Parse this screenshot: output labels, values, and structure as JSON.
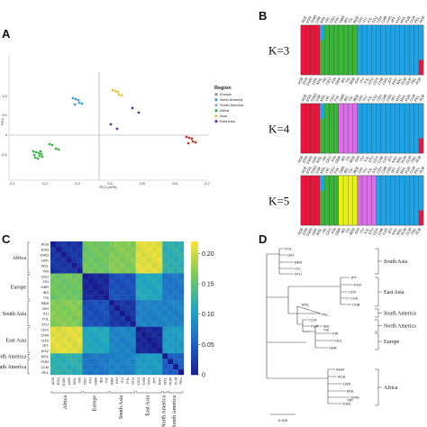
{
  "panels": {
    "a": "A",
    "b": "B",
    "c": "C",
    "d": "D"
  },
  "pca": {
    "xlabel": "PC1 (xx%)",
    "ylabel": "PC2",
    "x_ticks": [
      "0.1",
      "0.2",
      "0.3",
      "0.4",
      "0.5",
      "0.6",
      "0.7"
    ],
    "y_ticks": [
      "0.2",
      "0.1",
      "0",
      "-0.1"
    ],
    "legend_title": "Region",
    "legend": [
      {
        "name": "Europe",
        "color": "#8a8a8a"
      },
      {
        "name": "North America",
        "color": "#4a9ad6"
      },
      {
        "name": "South America",
        "color": "#7ab6e0"
      },
      {
        "name": "Africa",
        "color": "#3cb44b"
      },
      {
        "name": "Asia",
        "color": "#e6c040"
      },
      {
        "name": "East Asia",
        "color": "#6e2aa0"
      }
    ]
  },
  "admixture": {
    "k_labels": [
      "K=3",
      "K=4",
      "K=5"
    ]
  },
  "heatmap": {
    "row_groups": [
      "Africa",
      "Europe",
      "South Asia",
      "East Asia",
      "North America",
      "South America"
    ],
    "col_groups": [
      "Africa",
      "Europe",
      "South Asia",
      "East Asia",
      "North America",
      "South America"
    ],
    "labels": [
      "ACB",
      "ESN",
      "GWD",
      "LWK",
      "MSL",
      "YRI",
      "CEU",
      "FIN",
      "GBR",
      "IBS",
      "TSI",
      "BEB",
      "GIH",
      "ITU",
      "PJL",
      "STU",
      "CDX",
      "CHB",
      "CHS",
      "JPT",
      "KHV",
      "MXL",
      "PUR",
      "CLM",
      "PEL"
    ],
    "colorbar_ticks": [
      "0.20",
      "0.15",
      "0.10",
      "0.05",
      "0"
    ],
    "colors": {
      "low": "#1a1a8c",
      "mid": "#20a8c0",
      "high": "#f6e23a"
    }
  },
  "tree": {
    "clades": [
      "South Asia",
      "East Asia",
      "South America",
      "North America",
      "Europe",
      "Africa"
    ],
    "leaves_south_asia": [
      "PJL",
      "GIH",
      "BEB",
      "ITU",
      "STU"
    ],
    "leaves_east_asia": [
      "JPT",
      "KHV",
      "CDX",
      "CHS",
      "CHB"
    ],
    "leaves_america": [
      "MXL",
      "PEL",
      "CLM",
      "PUR"
    ],
    "leaves_europe": [
      "IBS",
      "TSI",
      "FIN",
      "CEU",
      "GBR"
    ],
    "leaves_africa": [
      "ASW",
      "ACB",
      "LWK",
      "MSL",
      "GWD",
      "YRI",
      "ESN"
    ],
    "scale": "0.005"
  }
}
